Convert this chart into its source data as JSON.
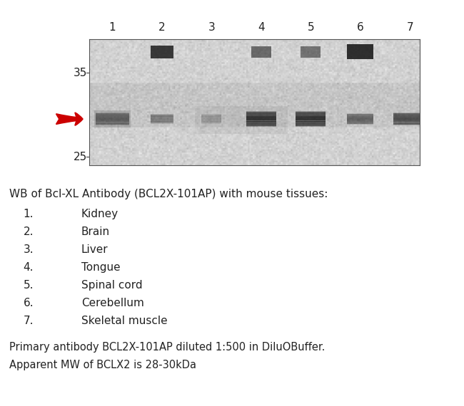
{
  "description_header": "WB of Bcl-XL Antibody (BCL2X-101AP) with mouse tissues:",
  "tissue_numbers": [
    "1.",
    "2.",
    "3.",
    "4.",
    "5.",
    "6.",
    "7."
  ],
  "tissue_names": [
    "Kidney",
    "Brain",
    "Liver",
    "Tongue",
    "Spinal cord",
    "Cerebellum",
    "Skeletal muscle"
  ],
  "footer_line1": "Primary antibody BCL2X-101AP diluted 1:500 in DiluOBuffer.",
  "footer_line2": "Apparent MW of BCLX2 is 28-30kDa",
  "lane_labels": [
    "1",
    "2",
    "3",
    "4",
    "5",
    "6",
    "7"
  ],
  "mw_labels": [
    "35",
    "25"
  ],
  "bg_color": "#ffffff",
  "text_color": "#222222",
  "arrow_color": "#cc0000",
  "gel_light": "#cccccc",
  "gel_mid": "#aaaaaa"
}
